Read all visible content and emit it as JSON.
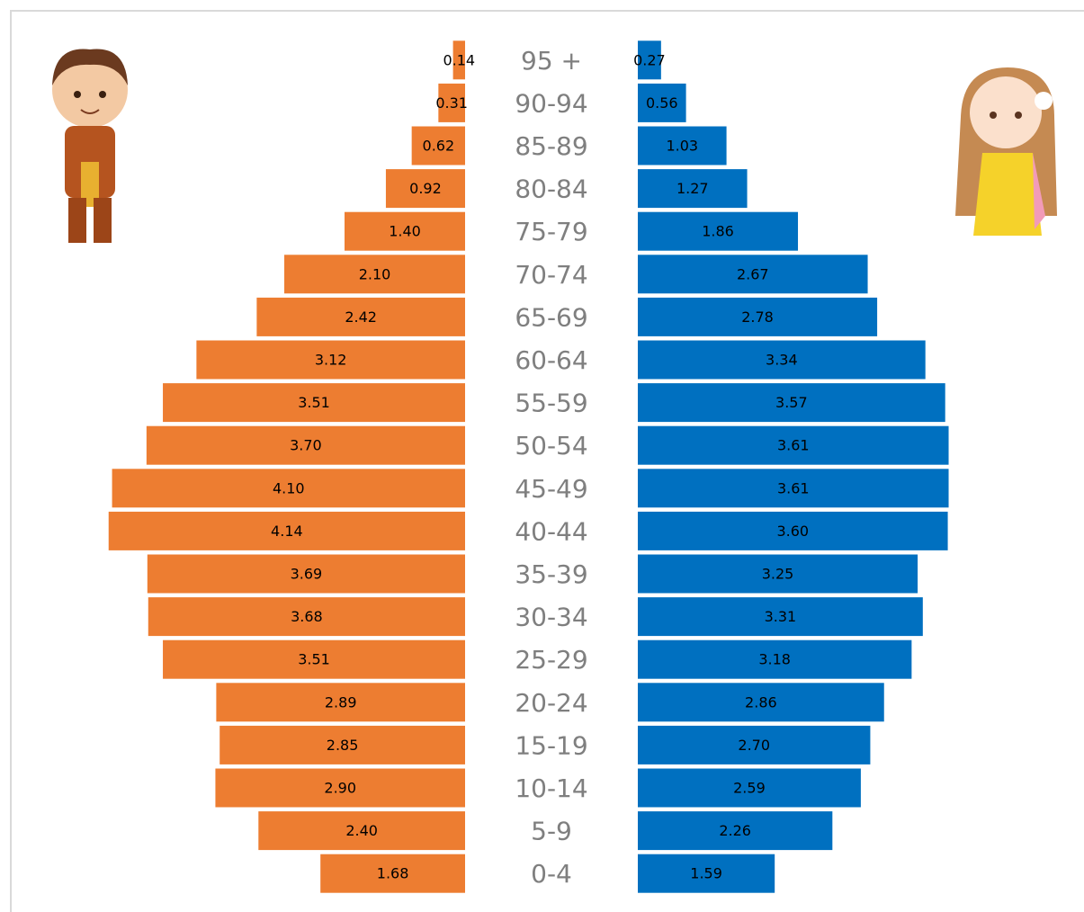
{
  "chart_data": {
    "type": "pyramid",
    "categories": [
      "95 +",
      "90-94",
      "85-89",
      "80-84",
      "75-79",
      "70-74",
      "65-69",
      "60-64",
      "55-59",
      "50-54",
      "45-49",
      "40-44",
      "35-39",
      "30-34",
      "25-29",
      "20-24",
      "15-19",
      "10-14",
      "5-9",
      "0-4"
    ],
    "series": [
      {
        "color": "#ed7d31",
        "side": "left",
        "values": [
          0.14,
          0.31,
          0.62,
          0.92,
          1.4,
          2.1,
          2.42,
          3.12,
          3.51,
          3.7,
          4.1,
          4.14,
          3.69,
          3.68,
          3.51,
          2.89,
          2.85,
          2.9,
          2.4,
          1.68
        ],
        "value_labels": [
          "0.14",
          "0.31",
          "0.62",
          "0.92",
          "1.40",
          "2.10",
          "2.42",
          "3.12",
          "3.51",
          "3.70",
          "4.10",
          "4.14",
          "3.69",
          "3.68",
          "3.51",
          "2.89",
          "2.85",
          "2.90",
          "2.40",
          "1.68"
        ]
      },
      {
        "color": "#0070c0",
        "side": "right",
        "values": [
          0.27,
          0.56,
          1.03,
          1.27,
          1.86,
          2.67,
          2.78,
          3.34,
          3.57,
          3.61,
          3.61,
          3.6,
          3.25,
          3.31,
          3.18,
          2.86,
          2.7,
          2.59,
          2.26,
          1.59
        ],
        "value_labels": [
          "0.27",
          "0.56",
          "1.03",
          "1.27",
          "1.86",
          "2.67",
          "2.78",
          "3.34",
          "3.57",
          "3.61",
          "3.61",
          "3.60",
          "3.25",
          "3.31",
          "3.18",
          "2.86",
          "2.70",
          "2.59",
          "2.26",
          "1.59"
        ]
      }
    ],
    "xlim": [
      0,
      4.2
    ]
  }
}
